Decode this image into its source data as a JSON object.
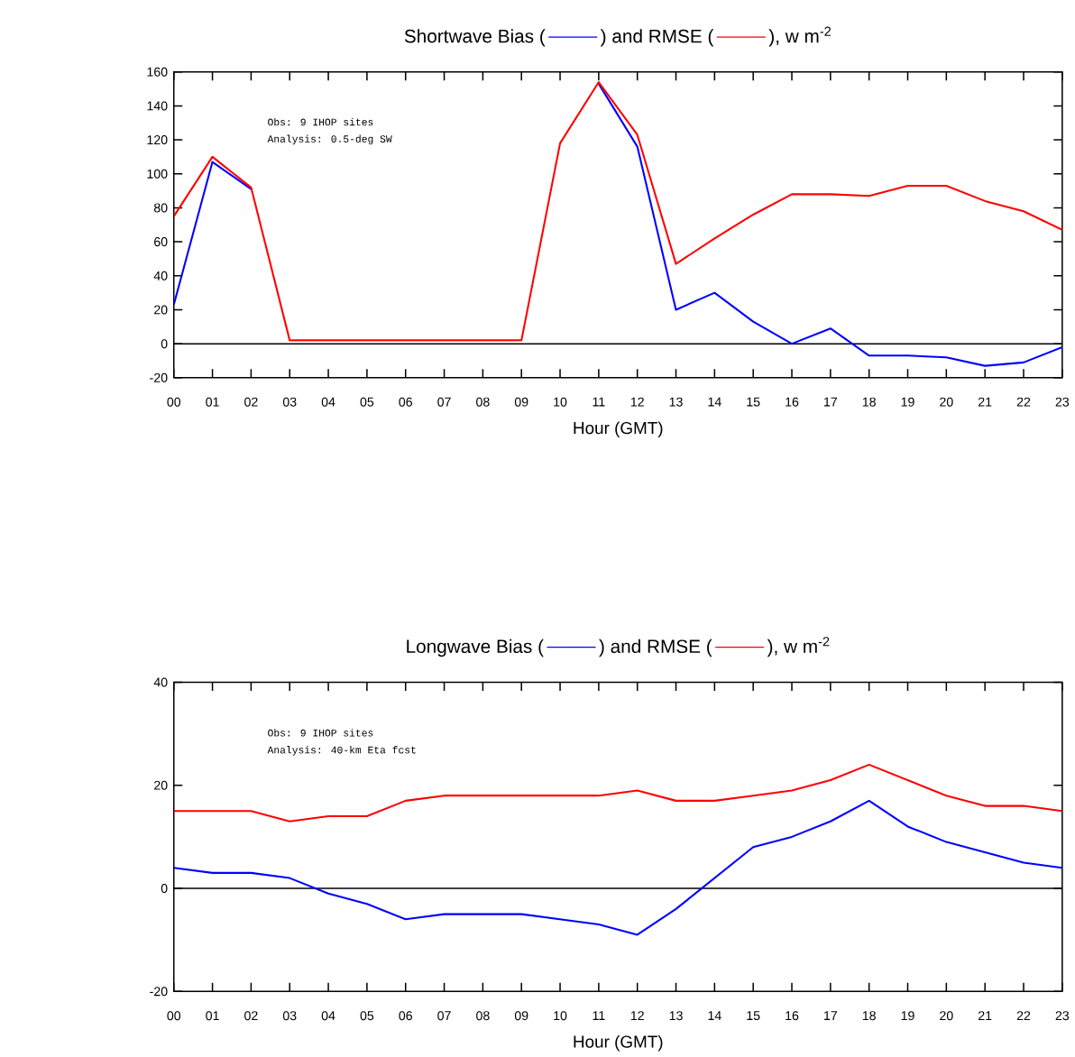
{
  "chart_data": [
    {
      "type": "line",
      "title": "), w m$^{-2}$",
      "xlabel": "Hour (GMT)",
      "categories": [
        "00",
        "01",
        "02",
        "03",
        "04",
        "05",
        "06",
        "07",
        "08",
        "09",
        "10",
        "11",
        "12",
        "13",
        "14",
        "15",
        "16",
        "17",
        "18",
        "19",
        "20",
        "21",
        "22",
        "23"
      ],
      "series": [
        {
          "name": "Shortwave Bias (",
          "color": "#0000ff",
          "values": [
            23,
            107,
            91,
            null,
            null,
            null,
            null,
            null,
            null,
            null,
            null,
            153,
            116,
            20,
            30,
            13,
            0,
            9,
            -7,
            -7,
            -8,
            -13,
            -11,
            -2
          ]
        },
        {
          "name": ") and RMSE (",
          "color": "#ff0000",
          "values": [
            75,
            110,
            92,
            2,
            2,
            2,
            2,
            2,
            2,
            2,
            118,
            154,
            123,
            47,
            62,
            76,
            88,
            88,
            87,
            93,
            93,
            84,
            78,
            67
          ]
        }
      ],
      "ylim": [
        -20,
        160
      ],
      "yticks": [
        -20,
        0,
        20,
        40,
        60,
        80,
        100,
        120,
        140,
        160
      ],
      "grid": false,
      "legend": "top",
      "marker": "none",
      "line_style": "solid",
      "ref_lines": [
        {
          "axis": "y",
          "value": 0,
          "color": "#000000"
        }
      ],
      "annotations": [
        "Obs:  9 IHOP sites",
        "Analysis: 0.5-deg SW"
      ]
    },
    {
      "type": "line",
      "title": "), w m$^{-2}$",
      "xlabel": "Hour (GMT)",
      "categories": [
        "00",
        "01",
        "02",
        "03",
        "04",
        "05",
        "06",
        "07",
        "08",
        "09",
        "10",
        "11",
        "12",
        "13",
        "14",
        "15",
        "16",
        "17",
        "18",
        "19",
        "20",
        "21",
        "22",
        "23"
      ],
      "series": [
        {
          "name": "Longwave Bias (",
          "color": "#0000ff",
          "values": [
            4,
            3,
            3,
            2,
            -1,
            -3,
            -6,
            -5,
            -5,
            -5,
            -6,
            -7,
            -9,
            -4,
            2,
            8,
            10,
            13,
            17,
            12,
            9,
            7,
            5,
            4
          ]
        },
        {
          "name": ") and RMSE (",
          "color": "#ff0000",
          "values": [
            15,
            15,
            15,
            13,
            14,
            14,
            17,
            18,
            18,
            18,
            18,
            18,
            19,
            17,
            17,
            18,
            19,
            21,
            24,
            21,
            18,
            16,
            16,
            15
          ]
        }
      ],
      "ylim": [
        -20,
        40
      ],
      "yticks": [
        -20,
        0,
        20,
        40
      ],
      "grid": false,
      "legend": "top",
      "marker": "none",
      "line_style": "solid",
      "ref_lines": [
        {
          "axis": "y",
          "value": 0,
          "color": "#000000"
        }
      ],
      "annotations": [
        "Obs:  9 IHOP sites",
        "Analysis: 40-km Eta fcst"
      ]
    }
  ]
}
